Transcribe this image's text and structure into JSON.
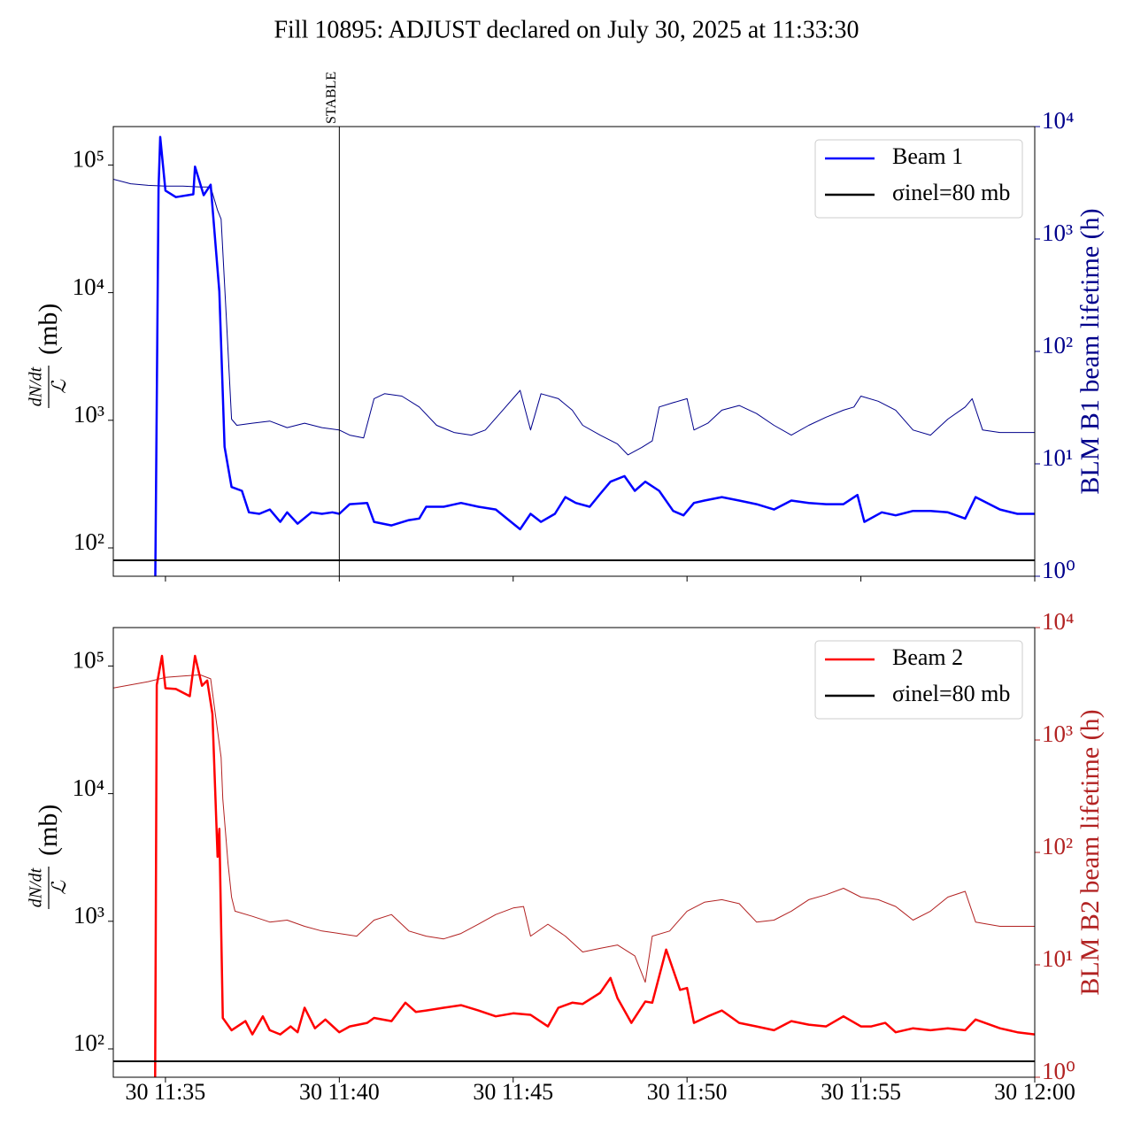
{
  "title": "Fill 10895: ADJUST declared on July 30, 2025 at 11:33:30",
  "chart_data": [
    {
      "type": "line",
      "log_y": true,
      "ylabel_numerator": "dN/dt",
      "ylabel_denominator": "ℒ",
      "ylabel_unit": "(mb)",
      "y2label": "BLM B1 beam lifetime (h)",
      "y2color": "#00008b",
      "xlim": [
        33.5,
        60
      ],
      "xticks": [
        35,
        40,
        45,
        50,
        55,
        60
      ],
      "ylim": [
        60,
        200000
      ],
      "yticks": [
        {
          "value": 100,
          "label": "10²"
        },
        {
          "value": 1000,
          "label": "10³"
        },
        {
          "value": 10000,
          "label": "10⁴"
        },
        {
          "value": 100000,
          "label": "10⁵"
        }
      ],
      "y2lim": [
        1,
        10000
      ],
      "y2ticks": [
        {
          "value": 1,
          "label": "10⁰"
        },
        {
          "value": 10,
          "label": "10¹"
        },
        {
          "value": 100,
          "label": "10²"
        },
        {
          "value": 1000,
          "label": "10³"
        },
        {
          "value": 10000,
          "label": "10⁴"
        }
      ],
      "legend": "upper right",
      "vline": {
        "x": 40,
        "label": "STABLE"
      },
      "hlines": [
        {
          "name": "σinel=80 mb",
          "value": 80,
          "color": "#000000"
        }
      ],
      "series": [
        {
          "axis": "y2",
          "color": "#00008b",
          "width": 1,
          "x": [
            33.5,
            34,
            34.5,
            35,
            35.5,
            36,
            36.3,
            36.5,
            36.6,
            36.75,
            36.9,
            37.05,
            37.5,
            38,
            38.5,
            39,
            39.5,
            40,
            40.3,
            40.7,
            41,
            41.3,
            41.8,
            42.3,
            42.8,
            43.3,
            43.8,
            44.2,
            44.7,
            45.2,
            45.5,
            45.8,
            46.3,
            46.7,
            47,
            47.5,
            48,
            48.3,
            48.7,
            49,
            49.2,
            49.6,
            50,
            50.2,
            50.6,
            51,
            51.5,
            52,
            52.5,
            53,
            53.5,
            54,
            54.5,
            54.8,
            55,
            55.5,
            56,
            56.5,
            57,
            57.5,
            58,
            58.2,
            58.5,
            59,
            60
          ],
          "values": [
            3400,
            3100,
            3000,
            2950,
            2950,
            2900,
            2900,
            1800,
            1500,
            200,
            25,
            22,
            23,
            24,
            21,
            23,
            21,
            20,
            18,
            17,
            38,
            42,
            40,
            32,
            22,
            19,
            18,
            20,
            30,
            45,
            20,
            42,
            38,
            30,
            22,
            18,
            15,
            12,
            14,
            16,
            32,
            35,
            38,
            20,
            23,
            30,
            33,
            28,
            22,
            18,
            22,
            26,
            30,
            32,
            40,
            36,
            30,
            20,
            18,
            25,
            32,
            38,
            20,
            19,
            19
          ]
        },
        {
          "name": "Beam 1",
          "color": "#0000ff",
          "width": 2.5,
          "x": [
            34.7,
            34.8,
            34.85,
            35,
            35.3,
            35.8,
            35.85,
            36.1,
            36.3,
            36.55,
            36.7,
            36.9,
            37.2,
            37.4,
            37.7,
            38,
            38.3,
            38.5,
            38.8,
            39.2,
            39.5,
            39.8,
            40,
            40.3,
            40.8,
            41,
            41.5,
            42,
            42.3,
            42.5,
            43,
            43.5,
            44,
            44.5,
            45,
            45.2,
            45.5,
            45.8,
            46.2,
            46.5,
            46.8,
            47.2,
            47.5,
            47.8,
            48.2,
            48.5,
            48.8,
            49.2,
            49.6,
            49.9,
            50.2,
            50.5,
            51,
            51.5,
            52,
            52.5,
            53,
            53.5,
            54,
            54.5,
            54.9,
            55.1,
            55.6,
            56,
            56.5,
            57,
            57.5,
            58,
            58.3,
            59,
            59.5,
            60
          ],
          "values": [
            30,
            65000,
            166000,
            63000,
            56000,
            59000,
            97000,
            58000,
            70000,
            10200,
            620,
            300,
            280,
            190,
            185,
            200,
            160,
            190,
            155,
            190,
            185,
            190,
            185,
            220,
            225,
            160,
            150,
            165,
            170,
            210,
            210,
            225,
            210,
            200,
            155,
            140,
            185,
            160,
            185,
            250,
            225,
            210,
            265,
            330,
            365,
            280,
            330,
            280,
            195,
            180,
            225,
            235,
            250,
            235,
            220,
            200,
            235,
            225,
            220,
            220,
            260,
            160,
            190,
            180,
            195,
            195,
            190,
            170,
            250,
            200,
            185,
            185
          ]
        }
      ]
    },
    {
      "type": "line",
      "log_y": true,
      "ylabel_numerator": "dN/dt",
      "ylabel_denominator": "ℒ",
      "ylabel_unit": "(mb)",
      "y2label": "BLM B2 beam lifetime (h)",
      "y2color": "#b22222",
      "xlim": [
        33.5,
        60
      ],
      "xticks": [
        {
          "value": 35,
          "label": "30 11:35"
        },
        {
          "value": 40,
          "label": "30 11:40"
        },
        {
          "value": 45,
          "label": "30 11:45"
        },
        {
          "value": 50,
          "label": "30 11:50"
        },
        {
          "value": 55,
          "label": "30 11:55"
        },
        {
          "value": 60,
          "label": "30 12:00"
        }
      ],
      "ylim": [
        60,
        200000
      ],
      "yticks": [
        {
          "value": 100,
          "label": "10²"
        },
        {
          "value": 1000,
          "label": "10³"
        },
        {
          "value": 10000,
          "label": "10⁴"
        },
        {
          "value": 100000,
          "label": "10⁵"
        }
      ],
      "y2lim": [
        1,
        10000
      ],
      "y2ticks": [
        {
          "value": 1,
          "label": "10⁰"
        },
        {
          "value": 10,
          "label": "10¹"
        },
        {
          "value": 100,
          "label": "10²"
        },
        {
          "value": 1000,
          "label": "10³"
        },
        {
          "value": 10000,
          "label": "10⁴"
        }
      ],
      "legend": "upper right",
      "hlines": [
        {
          "name": "σinel=80 mb",
          "value": 80,
          "color": "#000000"
        }
      ],
      "series": [
        {
          "axis": "y2",
          "color": "#b22222",
          "width": 1,
          "x": [
            33.5,
            34.5,
            35,
            35.5,
            36,
            36.3,
            36.6,
            36.65,
            36.8,
            36.9,
            37,
            37.5,
            38,
            38.5,
            39,
            39.5,
            40,
            40.5,
            41,
            41.5,
            42,
            42.5,
            43,
            43.5,
            44,
            44.5,
            45,
            45.3,
            45.5,
            46,
            46.5,
            47,
            47.5,
            48,
            48.5,
            48.8,
            49,
            49.5,
            50,
            50.5,
            51,
            51.5,
            52,
            52.5,
            53,
            53.5,
            54,
            54.5,
            55,
            55.5,
            56,
            56.5,
            57,
            57.5,
            58,
            58.3,
            59,
            60
          ],
          "values": [
            2900,
            3300,
            3600,
            3700,
            3800,
            3500,
            700,
            300,
            80,
            40,
            30,
            27,
            24,
            25,
            22,
            20,
            19,
            18,
            25,
            28,
            20,
            18,
            17,
            19,
            23,
            28,
            32,
            33,
            18,
            23,
            18,
            13,
            14,
            15,
            12,
            7,
            18,
            20,
            30,
            36,
            38,
            35,
            24,
            25,
            30,
            38,
            42,
            48,
            40,
            38,
            33,
            25,
            30,
            40,
            45,
            24,
            22,
            22
          ]
        },
        {
          "name": "Beam 2",
          "color": "#ff0000",
          "width": 2.5,
          "x": [
            34.7,
            34.75,
            34.9,
            35,
            35.3,
            35.7,
            35.85,
            36.05,
            36.2,
            36.35,
            36.5,
            36.55,
            36.65,
            36.9,
            37.3,
            37.5,
            37.8,
            38,
            38.3,
            38.6,
            38.8,
            39,
            39.3,
            39.6,
            40,
            40.3,
            40.8,
            41,
            41.5,
            41.9,
            42.2,
            42.5,
            43,
            43.5,
            44,
            44.5,
            45,
            45.5,
            46,
            46.3,
            46.7,
            47,
            47.5,
            47.8,
            48,
            48.4,
            48.8,
            49,
            49.4,
            49.8,
            50,
            50.2,
            50.6,
            51,
            51.5,
            52,
            52.5,
            53,
            53.5,
            54,
            54.5,
            55,
            55.3,
            55.7,
            56,
            56.5,
            57,
            57.5,
            58,
            58.3,
            59,
            59.5,
            60
          ],
          "values": [
            30,
            71000,
            120000,
            67000,
            66000,
            58000,
            120000,
            70000,
            77000,
            42000,
            3200,
            5300,
            175,
            140,
            165,
            130,
            180,
            140,
            130,
            150,
            135,
            210,
            145,
            170,
            135,
            150,
            160,
            175,
            165,
            230,
            195,
            200,
            210,
            220,
            200,
            180,
            190,
            185,
            150,
            210,
            230,
            225,
            275,
            360,
            250,
            160,
            235,
            230,
            600,
            290,
            300,
            160,
            180,
            200,
            160,
            150,
            140,
            165,
            155,
            150,
            180,
            150,
            150,
            160,
            135,
            145,
            140,
            145,
            140,
            170,
            145,
            135,
            130
          ]
        }
      ]
    }
  ]
}
